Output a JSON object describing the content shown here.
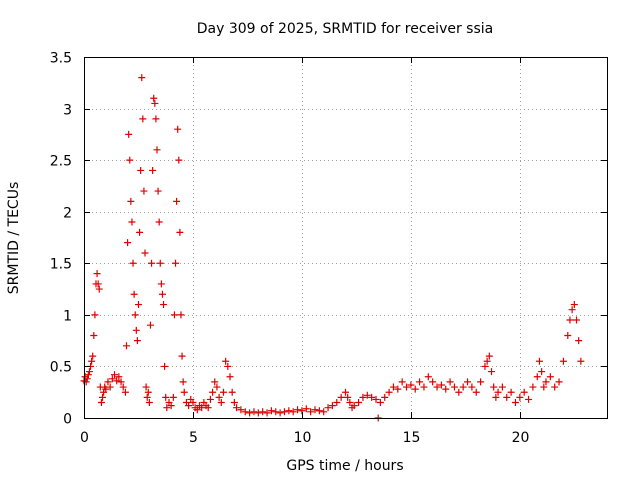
{
  "chart_data": {
    "type": "scatter",
    "title": "Day 309 of 2025, SRMTID for receiver ssia",
    "xlabel": "GPS time / hours",
    "ylabel": "SRMTID / TECUs",
    "xlim": [
      0,
      24
    ],
    "ylim": [
      0,
      3.5
    ],
    "x_ticks": [
      0,
      5,
      10,
      15,
      20
    ],
    "x_tick_labels": [
      "0",
      "5",
      "10",
      "15",
      "20"
    ],
    "y_ticks": [
      0,
      0.5,
      1,
      1.5,
      2,
      2.5,
      3,
      3.5
    ],
    "y_tick_labels": [
      "0",
      "0.5",
      "1",
      "1.5",
      "2",
      "2.5",
      "3",
      "3.5"
    ],
    "grid": true,
    "marker": "+",
    "color": "#e00000",
    "series": [
      {
        "name": "SRMTID",
        "points": [
          [
            0.0,
            0.36
          ],
          [
            0.05,
            0.4
          ],
          [
            0.1,
            0.35
          ],
          [
            0.15,
            0.38
          ],
          [
            0.2,
            0.42
          ],
          [
            0.25,
            0.45
          ],
          [
            0.3,
            0.5
          ],
          [
            0.35,
            0.55
          ],
          [
            0.4,
            0.6
          ],
          [
            0.45,
            0.8
          ],
          [
            0.5,
            1.0
          ],
          [
            0.55,
            1.3
          ],
          [
            0.6,
            1.4
          ],
          [
            0.65,
            1.3
          ],
          [
            0.7,
            1.25
          ],
          [
            0.75,
            0.3
          ],
          [
            0.8,
            0.15
          ],
          [
            0.85,
            0.2
          ],
          [
            0.9,
            0.25
          ],
          [
            0.95,
            0.3
          ],
          [
            1.0,
            0.28
          ],
          [
            1.1,
            0.35
          ],
          [
            1.2,
            0.3
          ],
          [
            1.3,
            0.38
          ],
          [
            1.4,
            0.42
          ],
          [
            1.5,
            0.36
          ],
          [
            1.6,
            0.4
          ],
          [
            1.7,
            0.35
          ],
          [
            1.8,
            0.3
          ],
          [
            1.9,
            0.25
          ],
          [
            1.95,
            0.7
          ],
          [
            2.0,
            1.7
          ],
          [
            2.05,
            2.75
          ],
          [
            2.1,
            2.5
          ],
          [
            2.15,
            2.1
          ],
          [
            2.2,
            1.9
          ],
          [
            2.25,
            1.5
          ],
          [
            2.3,
            1.2
          ],
          [
            2.35,
            1.0
          ],
          [
            2.4,
            0.85
          ],
          [
            2.45,
            0.75
          ],
          [
            2.5,
            1.1
          ],
          [
            2.55,
            1.8
          ],
          [
            2.6,
            2.4
          ],
          [
            2.65,
            3.3
          ],
          [
            2.7,
            2.9
          ],
          [
            2.75,
            2.2
          ],
          [
            2.8,
            1.6
          ],
          [
            2.85,
            0.3
          ],
          [
            2.9,
            0.2
          ],
          [
            2.95,
            0.25
          ],
          [
            3.0,
            0.15
          ],
          [
            3.05,
            0.9
          ],
          [
            3.1,
            1.5
          ],
          [
            3.15,
            2.4
          ],
          [
            3.2,
            3.1
          ],
          [
            3.25,
            3.05
          ],
          [
            3.3,
            2.9
          ],
          [
            3.35,
            2.6
          ],
          [
            3.4,
            2.2
          ],
          [
            3.45,
            1.9
          ],
          [
            3.5,
            1.5
          ],
          [
            3.55,
            1.3
          ],
          [
            3.6,
            1.2
          ],
          [
            3.65,
            1.1
          ],
          [
            3.7,
            0.5
          ],
          [
            3.75,
            0.2
          ],
          [
            3.8,
            0.1
          ],
          [
            3.9,
            0.15
          ],
          [
            4.0,
            0.12
          ],
          [
            4.1,
            0.2
          ],
          [
            4.15,
            1.0
          ],
          [
            4.2,
            1.5
          ],
          [
            4.25,
            2.1
          ],
          [
            4.3,
            2.8
          ],
          [
            4.35,
            2.5
          ],
          [
            4.4,
            1.8
          ],
          [
            4.45,
            1.0
          ],
          [
            4.5,
            0.6
          ],
          [
            4.55,
            0.35
          ],
          [
            4.6,
            0.25
          ],
          [
            4.7,
            0.15
          ],
          [
            4.8,
            0.12
          ],
          [
            4.9,
            0.18
          ],
          [
            5.0,
            0.15
          ],
          [
            5.1,
            0.1
          ],
          [
            5.2,
            0.08
          ],
          [
            5.3,
            0.12
          ],
          [
            5.4,
            0.1
          ],
          [
            5.5,
            0.15
          ],
          [
            5.6,
            0.12
          ],
          [
            5.7,
            0.1
          ],
          [
            5.8,
            0.18
          ],
          [
            5.9,
            0.25
          ],
          [
            6.0,
            0.35
          ],
          [
            6.1,
            0.3
          ],
          [
            6.2,
            0.2
          ],
          [
            6.3,
            0.15
          ],
          [
            6.4,
            0.25
          ],
          [
            6.5,
            0.55
          ],
          [
            6.6,
            0.5
          ],
          [
            6.7,
            0.4
          ],
          [
            6.8,
            0.25
          ],
          [
            6.9,
            0.15
          ],
          [
            7.0,
            0.1
          ],
          [
            7.2,
            0.08
          ],
          [
            7.4,
            0.06
          ],
          [
            7.6,
            0.05
          ],
          [
            7.8,
            0.06
          ],
          [
            8.0,
            0.05
          ],
          [
            8.2,
            0.06
          ],
          [
            8.4,
            0.05
          ],
          [
            8.6,
            0.07
          ],
          [
            8.8,
            0.06
          ],
          [
            9.0,
            0.05
          ],
          [
            9.2,
            0.06
          ],
          [
            9.4,
            0.07
          ],
          [
            9.6,
            0.06
          ],
          [
            9.8,
            0.08
          ],
          [
            10.0,
            0.07
          ],
          [
            10.2,
            0.09
          ],
          [
            10.4,
            0.06
          ],
          [
            10.6,
            0.08
          ],
          [
            10.8,
            0.07
          ],
          [
            11.0,
            0.06
          ],
          [
            11.2,
            0.1
          ],
          [
            11.4,
            0.12
          ],
          [
            11.6,
            0.15
          ],
          [
            11.8,
            0.2
          ],
          [
            12.0,
            0.25
          ],
          [
            12.1,
            0.2
          ],
          [
            12.2,
            0.15
          ],
          [
            12.3,
            0.1
          ],
          [
            12.4,
            0.12
          ],
          [
            12.6,
            0.15
          ],
          [
            12.8,
            0.2
          ],
          [
            13.0,
            0.22
          ],
          [
            13.2,
            0.2
          ],
          [
            13.4,
            0.18
          ],
          [
            13.5,
            0.0
          ],
          [
            13.6,
            0.15
          ],
          [
            13.8,
            0.2
          ],
          [
            14.0,
            0.25
          ],
          [
            14.2,
            0.3
          ],
          [
            14.4,
            0.28
          ],
          [
            14.6,
            0.35
          ],
          [
            14.8,
            0.3
          ],
          [
            15.0,
            0.32
          ],
          [
            15.2,
            0.28
          ],
          [
            15.4,
            0.35
          ],
          [
            15.6,
            0.3
          ],
          [
            15.8,
            0.4
          ],
          [
            16.0,
            0.35
          ],
          [
            16.2,
            0.3
          ],
          [
            16.4,
            0.32
          ],
          [
            16.6,
            0.28
          ],
          [
            16.8,
            0.35
          ],
          [
            17.0,
            0.3
          ],
          [
            17.2,
            0.25
          ],
          [
            17.4,
            0.3
          ],
          [
            17.6,
            0.35
          ],
          [
            17.8,
            0.3
          ],
          [
            18.0,
            0.25
          ],
          [
            18.2,
            0.35
          ],
          [
            18.4,
            0.5
          ],
          [
            18.5,
            0.55
          ],
          [
            18.6,
            0.6
          ],
          [
            18.7,
            0.45
          ],
          [
            18.8,
            0.3
          ],
          [
            18.9,
            0.2
          ],
          [
            19.0,
            0.25
          ],
          [
            19.2,
            0.3
          ],
          [
            19.4,
            0.2
          ],
          [
            19.6,
            0.25
          ],
          [
            19.8,
            0.15
          ],
          [
            20.0,
            0.2
          ],
          [
            20.2,
            0.25
          ],
          [
            20.4,
            0.18
          ],
          [
            20.6,
            0.3
          ],
          [
            20.8,
            0.4
          ],
          [
            20.9,
            0.55
          ],
          [
            21.0,
            0.45
          ],
          [
            21.1,
            0.3
          ],
          [
            21.2,
            0.35
          ],
          [
            21.4,
            0.4
          ],
          [
            21.6,
            0.3
          ],
          [
            21.8,
            0.35
          ],
          [
            22.0,
            0.55
          ],
          [
            22.2,
            0.8
          ],
          [
            22.3,
            0.95
          ],
          [
            22.4,
            1.05
          ],
          [
            22.5,
            1.1
          ],
          [
            22.6,
            0.95
          ],
          [
            22.7,
            0.75
          ],
          [
            22.8,
            0.55
          ]
        ]
      }
    ]
  }
}
